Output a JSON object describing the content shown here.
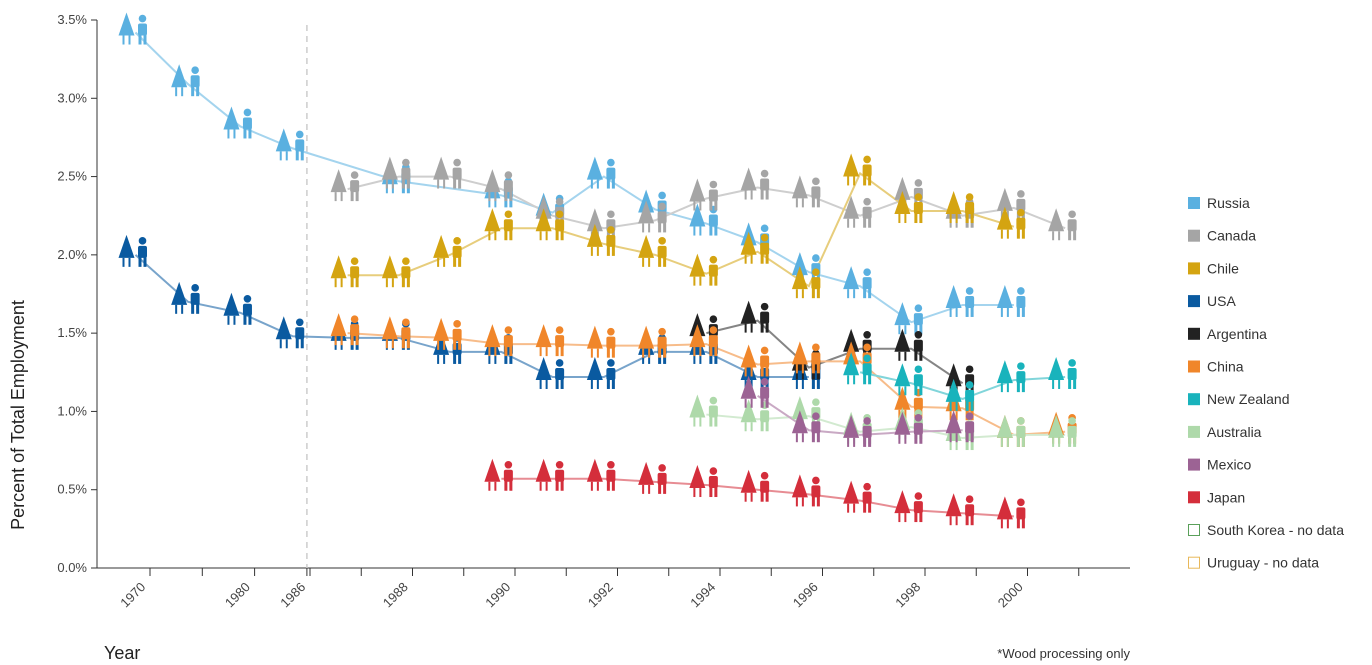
{
  "chart_data": {
    "type": "line",
    "ylabel": "Percent of Total Employment",
    "xlabel": "Year",
    "footnote": "*Wood processing only",
    "y_ticks": [
      "0.0%",
      "0.5%",
      "1.0%",
      "1.5%",
      "2.0%",
      "2.5%",
      "3.0%",
      "3.5%"
    ],
    "ylim": [
      0,
      3.5
    ],
    "x_categories": [
      "1970",
      "1975",
      "1980",
      "1985",
      "1986",
      "1987",
      "1988",
      "1989",
      "1990",
      "1991",
      "1992",
      "1993",
      "1994",
      "1995",
      "1996",
      "1997",
      "1998",
      "1999",
      "2000",
      "2001"
    ],
    "x_tick_labels": [
      "1970",
      "",
      "1980",
      "",
      "1986",
      "",
      "1988",
      "",
      "1990",
      "",
      "1992",
      "",
      "1994",
      "",
      "1996",
      "",
      "1998",
      "",
      "2000",
      ""
    ],
    "break_after": "1985",
    "series": [
      {
        "name": "Russia",
        "color": "#5ab0e0",
        "values": {
          "1970": 3.42,
          "1975": 3.09,
          "1980": 2.82,
          "1985": 2.68,
          "1988": 2.47,
          "1990": 2.38,
          "1991": 2.27,
          "1992": 2.5,
          "1993": 2.29,
          "1994": 2.2,
          "1995": 2.08,
          "1996": 1.89,
          "1997": 1.8,
          "1998": 1.57,
          "1999": 1.68,
          "2000": 1.68
        }
      },
      {
        "name": "Canada",
        "color": "#a5a5a5",
        "values": {
          "1987": 2.42,
          "1988": 2.5,
          "1989": 2.5,
          "1990": 2.42,
          "1991": 2.25,
          "1992": 2.17,
          "1993": 2.22,
          "1994": 2.36,
          "1995": 2.43,
          "1996": 2.38,
          "1997": 2.25,
          "1998": 2.37,
          "1999": 2.25,
          "2000": 2.3,
          "2001": 2.17
        }
      },
      {
        "name": "Chile",
        "color": "#d4a411",
        "values": {
          "1987": 1.87,
          "1988": 1.87,
          "1989": 2.0,
          "1990": 2.17,
          "1991": 2.17,
          "1992": 2.07,
          "1993": 2.0,
          "1994": 1.88,
          "1995": 2.02,
          "1996": 1.8,
          "1997": 2.52,
          "1998": 2.28,
          "1999": 2.28,
          "2000": 2.18
        }
      },
      {
        "name": "USA",
        "color": "#0a5aa0",
        "values": {
          "1970": 2.0,
          "1975": 1.7,
          "1980": 1.63,
          "1985": 1.48,
          "1987": 1.47,
          "1988": 1.47,
          "1989": 1.38,
          "1990": 1.38,
          "1991": 1.22,
          "1992": 1.22,
          "1993": 1.38,
          "1994": 1.38,
          "1995": 1.22,
          "1996": 1.22
        }
      },
      {
        "name": "Argentina",
        "color": "#222222",
        "values": {
          "1994": 1.5,
          "1995": 1.58,
          "1996": 1.28,
          "1997": 1.4,
          "1998": 1.4,
          "1999": 1.18
        }
      },
      {
        "name": "China",
        "color": "#f0862a",
        "values": {
          "1987": 1.5,
          "1988": 1.48,
          "1989": 1.47,
          "1990": 1.43,
          "1991": 1.43,
          "1992": 1.42,
          "1993": 1.42,
          "1994": 1.43,
          "1995": 1.3,
          "1996": 1.32,
          "1997": 1.32,
          "1998": 1.03,
          "1999": 1.02,
          "2000": 0.85,
          "2001": 0.87
        }
      },
      {
        "name": "New Zealand",
        "color": "#19b3bc",
        "values": {
          "1997": 1.25,
          "1998": 1.18,
          "1999": 1.08,
          "2000": 1.2,
          "2001": 1.22
        }
      },
      {
        "name": "Australia",
        "color": "#aed9aa",
        "values": {
          "1994": 0.98,
          "1995": 0.95,
          "1996": 0.97,
          "1997": 0.87,
          "1998": 0.9,
          "1999": 0.83,
          "2000": 0.85,
          "2001": 0.85
        }
      },
      {
        "name": "Mexico",
        "color": "#9c6394",
        "values": {
          "1995": 1.1,
          "1996": 0.88,
          "1997": 0.85,
          "1998": 0.87,
          "1999": 0.88
        }
      },
      {
        "name": "Japan",
        "color": "#d42e3b",
        "values": {
          "1990": 0.57,
          "1991": 0.57,
          "1992": 0.57,
          "1993": 0.55,
          "1994": 0.53,
          "1995": 0.5,
          "1996": 0.47,
          "1997": 0.43,
          "1998": 0.37,
          "1999": 0.35,
          "2000": 0.33
        }
      }
    ],
    "legend": [
      {
        "name": "Russia",
        "color": "#5ab0e0",
        "filled": true
      },
      {
        "name": "Canada",
        "color": "#a5a5a5",
        "filled": true
      },
      {
        "name": "Chile",
        "color": "#d4a411",
        "filled": true
      },
      {
        "name": "USA",
        "color": "#0a5aa0",
        "filled": true
      },
      {
        "name": "Argentina",
        "color": "#222222",
        "filled": true
      },
      {
        "name": "China",
        "color": "#f0862a",
        "filled": true
      },
      {
        "name": "New Zealand",
        "color": "#19b3bc",
        "filled": true
      },
      {
        "name": "Australia",
        "color": "#aed9aa",
        "filled": true
      },
      {
        "name": "Mexico",
        "color": "#9c6394",
        "filled": true
      },
      {
        "name": "Japan",
        "color": "#d42e3b",
        "filled": true
      },
      {
        "name": "South Korea - no data",
        "color": "#5aa05a",
        "filled": false
      },
      {
        "name": "Uruguay - no data",
        "color": "#e8b85a",
        "filled": false
      }
    ],
    "legend_position": "right",
    "grid": false
  }
}
